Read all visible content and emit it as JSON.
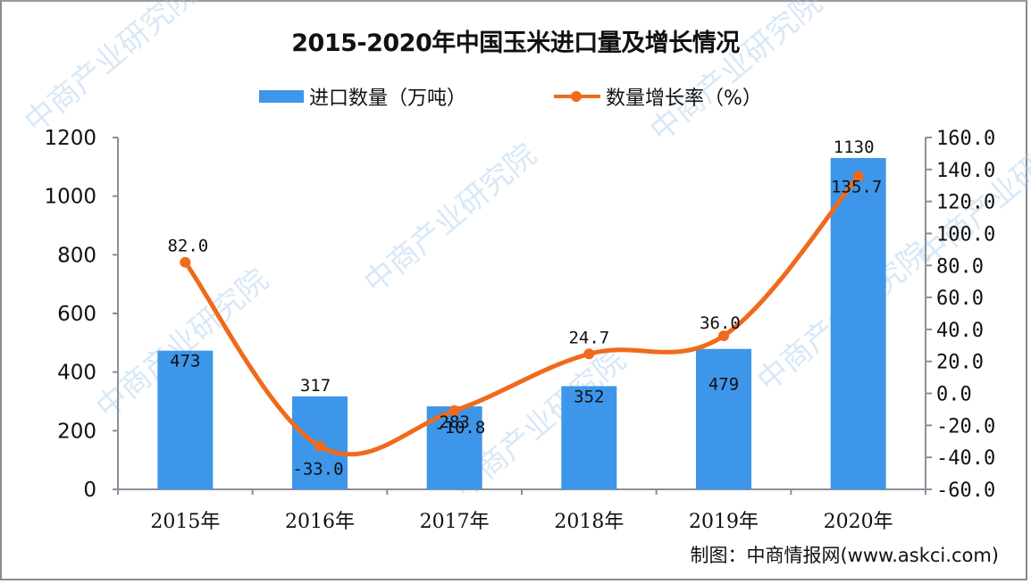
{
  "title": "2015-2020年中国玉米进口量及增长情况",
  "legend": {
    "bar_label": "进口数量（万吨）",
    "line_label": "数量增长率（%）"
  },
  "source": "制图：中商情报网(www.askci.com)",
  "watermark": "中商产业研究院",
  "colors": {
    "bar": "#3d96e9",
    "line": "#f06a1c",
    "axis": "#8d8d9a"
  },
  "chart_data": {
    "type": "bar+line",
    "title": "2015-2020年中国玉米进口量及增长情况",
    "categories": [
      "2015年",
      "2016年",
      "2017年",
      "2018年",
      "2019年",
      "2020年"
    ],
    "series": [
      {
        "name": "进口数量（万吨）",
        "type": "bar",
        "axis": "left",
        "values": [
          473,
          317,
          283,
          352,
          479,
          1130
        ]
      },
      {
        "name": "数量增长率（%）",
        "type": "line",
        "axis": "right",
        "values": [
          82.0,
          -33.0,
          -10.8,
          24.7,
          36.0,
          135.7
        ]
      }
    ],
    "left_axis": {
      "ylim": [
        0,
        1200
      ],
      "ticks": [
        0,
        200,
        400,
        600,
        800,
        1000,
        1200
      ]
    },
    "right_axis": {
      "ylim": [
        -60,
        160
      ],
      "ticks": [
        "-60.0",
        "-40.0",
        "-20.0",
        "0.0",
        "20.0",
        "40.0",
        "60.0",
        "80.0",
        "100.0",
        "120.0",
        "140.0",
        "160.0"
      ]
    },
    "xlabel": "",
    "ylabel": "",
    "grid": false,
    "legend_position": "top"
  }
}
